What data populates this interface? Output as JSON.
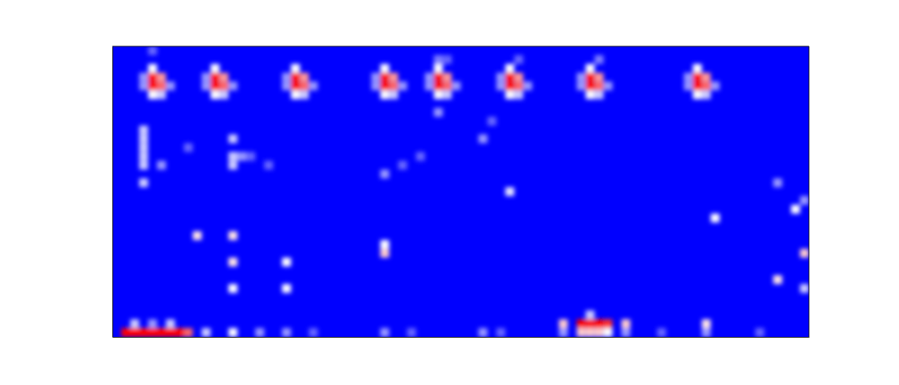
{
  "chart_data": {
    "type": "heatmap",
    "tick_labels": false,
    "xlim": [
      0,
      78
    ],
    "ylim": [
      0,
      33
    ],
    "xticks": [],
    "yticks": [],
    "zlim": [
      0,
      1
    ],
    "cells": [
      [
        4,
        28,
        1
      ],
      [
        4,
        29,
        1
      ],
      [
        5,
        28,
        0.8
      ],
      [
        5,
        29,
        0.7
      ],
      [
        4,
        27,
        0.5
      ],
      [
        4,
        30,
        0.5
      ],
      [
        5,
        27,
        0.4
      ],
      [
        6,
        28,
        0.3
      ],
      [
        3,
        28,
        0.3
      ],
      [
        3,
        29,
        0.3
      ],
      [
        11,
        28,
        1
      ],
      [
        11,
        29,
        1
      ],
      [
        12,
        28,
        0.8
      ],
      [
        12,
        29,
        0.7
      ],
      [
        11,
        27,
        0.5
      ],
      [
        11,
        30,
        0.5
      ],
      [
        12,
        27,
        0.4
      ],
      [
        13,
        28,
        0.3
      ],
      [
        10,
        28,
        0.3
      ],
      [
        10,
        29,
        0.3
      ],
      [
        20,
        28,
        1
      ],
      [
        20,
        29,
        1
      ],
      [
        21,
        28,
        0.8
      ],
      [
        21,
        29,
        0.7
      ],
      [
        20,
        27,
        0.5
      ],
      [
        20,
        30,
        0.5
      ],
      [
        21,
        27,
        0.4
      ],
      [
        22,
        28,
        0.3
      ],
      [
        19,
        28,
        0.3
      ],
      [
        19,
        29,
        0.3
      ],
      [
        30,
        28,
        1
      ],
      [
        30,
        29,
        1
      ],
      [
        31,
        28,
        0.8
      ],
      [
        31,
        29,
        0.7
      ],
      [
        30,
        27,
        0.5
      ],
      [
        30,
        30,
        0.5
      ],
      [
        31,
        27,
        0.4
      ],
      [
        32,
        28,
        0.3
      ],
      [
        29,
        28,
        0.3
      ],
      [
        29,
        29,
        0.3
      ],
      [
        36,
        28,
        1
      ],
      [
        36,
        29,
        1
      ],
      [
        37,
        28,
        0.8
      ],
      [
        37,
        29,
        0.7
      ],
      [
        36,
        27,
        0.5
      ],
      [
        36,
        30,
        0.5
      ],
      [
        37,
        27,
        0.4
      ],
      [
        38,
        28,
        0.3
      ],
      [
        35,
        28,
        0.3
      ],
      [
        35,
        29,
        0.3
      ],
      [
        44,
        28,
        1
      ],
      [
        44,
        29,
        1
      ],
      [
        45,
        28,
        0.8
      ],
      [
        45,
        29,
        0.7
      ],
      [
        44,
        27,
        0.5
      ],
      [
        44,
        30,
        0.5
      ],
      [
        45,
        27,
        0.4
      ],
      [
        46,
        28,
        0.3
      ],
      [
        43,
        28,
        0.3
      ],
      [
        43,
        29,
        0.3
      ],
      [
        53,
        28,
        1
      ],
      [
        53,
        29,
        1
      ],
      [
        54,
        28,
        0.8
      ],
      [
        54,
        29,
        0.7
      ],
      [
        53,
        27,
        0.5
      ],
      [
        53,
        30,
        0.5
      ],
      [
        54,
        27,
        0.4
      ],
      [
        55,
        28,
        0.3
      ],
      [
        52,
        28,
        0.3
      ],
      [
        52,
        29,
        0.3
      ],
      [
        65,
        28,
        1
      ],
      [
        65,
        29,
        1
      ],
      [
        66,
        28,
        0.8
      ],
      [
        66,
        29,
        0.7
      ],
      [
        65,
        27,
        0.5
      ],
      [
        65,
        30,
        0.5
      ],
      [
        66,
        27,
        0.4
      ],
      [
        67,
        28,
        0.3
      ],
      [
        64,
        28,
        0.3
      ],
      [
        64,
        29,
        0.3
      ],
      [
        4,
        32,
        0.2
      ],
      [
        36,
        31,
        0.25
      ],
      [
        37,
        31,
        0.2
      ],
      [
        45,
        31,
        0.2
      ],
      [
        54,
        31,
        0.25
      ],
      [
        3,
        23,
        0.4
      ],
      [
        3,
        22,
        0.4
      ],
      [
        3,
        21,
        0.4
      ],
      [
        3,
        20,
        0.4
      ],
      [
        3,
        19,
        0.4
      ],
      [
        3,
        17,
        0.4
      ],
      [
        5,
        19,
        0.3
      ],
      [
        8,
        21,
        0.2
      ],
      [
        13,
        22,
        0.4
      ],
      [
        13,
        20,
        0.4
      ],
      [
        13,
        19,
        0.4
      ],
      [
        14,
        20,
        0.3
      ],
      [
        15,
        20,
        0.2
      ],
      [
        17,
        19,
        0.2
      ],
      [
        30,
        18,
        0.3
      ],
      [
        32,
        19,
        0.2
      ],
      [
        34,
        20,
        0.2
      ],
      [
        36,
        25,
        0.3
      ],
      [
        41,
        22,
        0.3
      ],
      [
        42,
        24,
        0.2
      ],
      [
        44,
        16,
        0.45
      ],
      [
        9,
        11,
        0.55
      ],
      [
        13,
        11,
        0.55
      ],
      [
        13,
        8,
        0.55
      ],
      [
        13,
        5,
        0.5
      ],
      [
        19,
        8,
        0.5
      ],
      [
        19,
        5,
        0.5
      ],
      [
        30,
        9,
        0.6
      ],
      [
        30,
        10,
        0.5
      ],
      [
        74,
        17,
        0.3
      ],
      [
        67,
        13,
        0.5
      ],
      [
        76,
        14,
        0.5
      ],
      [
        77,
        15,
        0.3
      ],
      [
        77,
        9,
        0.6
      ],
      [
        74,
        6,
        0.55
      ],
      [
        77,
        5,
        0.4
      ],
      [
        1,
        0,
        1
      ],
      [
        2,
        0,
        1
      ],
      [
        3,
        0,
        1
      ],
      [
        4,
        0,
        1
      ],
      [
        5,
        0,
        1
      ],
      [
        6,
        0,
        1
      ],
      [
        7,
        0,
        1
      ],
      [
        8,
        0,
        0.8
      ],
      [
        2,
        1,
        0.4
      ],
      [
        4,
        1,
        0.3
      ],
      [
        6,
        1,
        0.4
      ],
      [
        10,
        0,
        0.4
      ],
      [
        13,
        0,
        0.5
      ],
      [
        16,
        0,
        0.3
      ],
      [
        19,
        0,
        0.3
      ],
      [
        22,
        0,
        0.2
      ],
      [
        30,
        0,
        0.3
      ],
      [
        33,
        0,
        0.2
      ],
      [
        41,
        0,
        0.3
      ],
      [
        43,
        0,
        0.2
      ],
      [
        50,
        1,
        0.6
      ],
      [
        50,
        0,
        0.3
      ],
      [
        52,
        1,
        1
      ],
      [
        53,
        1,
        1
      ],
      [
        54,
        1,
        1
      ],
      [
        55,
        1,
        0.9
      ],
      [
        52,
        0,
        0.6
      ],
      [
        53,
        0,
        0.6
      ],
      [
        54,
        0,
        0.6
      ],
      [
        55,
        0,
        0.5
      ],
      [
        53,
        2,
        0.4
      ],
      [
        57,
        1,
        0.6
      ],
      [
        57,
        0,
        0.3
      ],
      [
        61,
        0,
        0.2
      ],
      [
        66,
        1,
        0.55
      ],
      [
        66,
        0,
        0.3
      ],
      [
        72,
        0,
        0.2
      ]
    ]
  }
}
